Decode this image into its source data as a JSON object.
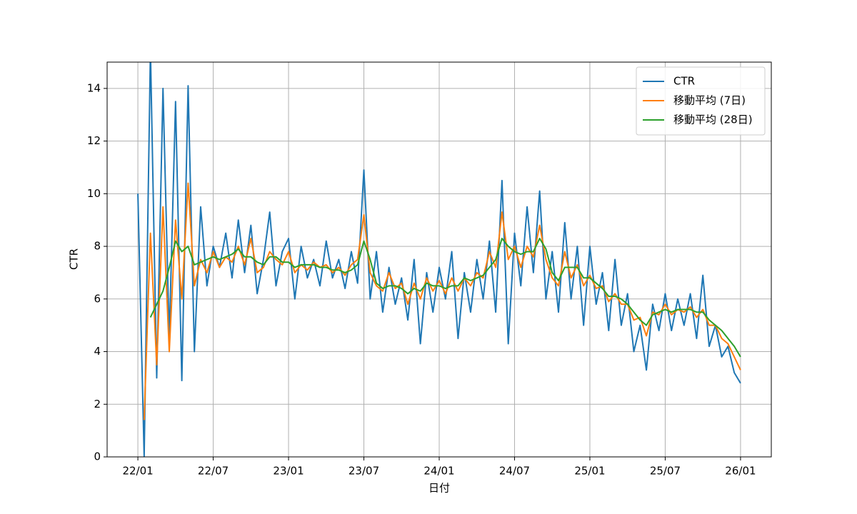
{
  "chart_data": {
    "type": "line",
    "xlabel": "日付",
    "ylabel": "CTR",
    "x": [
      0,
      0.5,
      1,
      1.5,
      2,
      2.5,
      3,
      3.5,
      4,
      4.5,
      5,
      5.5,
      6,
      6.5,
      7,
      7.5,
      8,
      8.5,
      9,
      9.5,
      10,
      10.5,
      11,
      11.5,
      12,
      12.5,
      13,
      13.5,
      14,
      14.5,
      15,
      15.5,
      16,
      16.5,
      17,
      17.5,
      18,
      18.5,
      19,
      19.5,
      20,
      20.5,
      21,
      21.5,
      22,
      22.5,
      23,
      23.5,
      24,
      24.5,
      25,
      25.5,
      26,
      26.5,
      27,
      27.5,
      28,
      28.5,
      29,
      29.5,
      30,
      30.5,
      31,
      31.5,
      32,
      32.5,
      33,
      33.5,
      34,
      34.5,
      35,
      35.5,
      36,
      36.5,
      37,
      37.5,
      38,
      38.5,
      39,
      39.5,
      40,
      40.5,
      41,
      41.5,
      42,
      42.5,
      43,
      43.5,
      44,
      44.5,
      45,
      45.5,
      46,
      46.5,
      47,
      47.5,
      48
    ],
    "series": [
      {
        "name": "CTR",
        "color": "#1f77b4",
        "values": [
          10.0,
          0.0,
          15.5,
          3.0,
          14.0,
          4.5,
          13.5,
          2.9,
          14.1,
          4.0,
          9.5,
          6.5,
          8.0,
          7.2,
          8.5,
          6.8,
          9.0,
          7.0,
          8.8,
          6.2,
          7.5,
          9.3,
          6.5,
          7.8,
          8.3,
          6.0,
          8.0,
          6.8,
          7.5,
          6.5,
          8.2,
          6.8,
          7.5,
          6.4,
          7.8,
          6.6,
          10.9,
          6.0,
          7.8,
          5.5,
          7.2,
          5.8,
          6.8,
          5.2,
          7.5,
          4.3,
          7.0,
          5.5,
          7.2,
          6.0,
          7.8,
          4.5,
          7.0,
          5.5,
          7.5,
          6.0,
          8.2,
          5.5,
          10.5,
          4.3,
          8.5,
          6.5,
          9.5,
          7.0,
          10.1,
          6.0,
          7.8,
          5.5,
          8.9,
          6.0,
          8.0,
          5.0,
          8.0,
          5.8,
          7.0,
          4.8,
          7.5,
          5.0,
          6.2,
          4.0,
          5.0,
          3.3,
          5.8,
          4.8,
          6.2,
          4.8,
          6.0,
          5.0,
          6.2,
          4.5,
          6.9,
          4.2,
          5.0,
          3.8,
          4.2,
          3.2,
          2.8
        ]
      },
      {
        "name": "移動平均 (7日)",
        "color": "#ff7f0e",
        "values": [
          null,
          1.4,
          8.5,
          3.5,
          9.5,
          4.0,
          9.0,
          6.0,
          10.4,
          6.5,
          7.5,
          7.0,
          7.8,
          7.2,
          7.6,
          7.4,
          8.0,
          7.3,
          8.3,
          7.0,
          7.2,
          7.8,
          7.5,
          7.3,
          7.8,
          7.0,
          7.3,
          7.1,
          7.4,
          7.2,
          7.3,
          7.0,
          7.2,
          6.9,
          7.3,
          7.5,
          9.2,
          7.0,
          6.5,
          6.3,
          7.0,
          6.4,
          6.6,
          5.8,
          6.6,
          6.0,
          6.8,
          6.3,
          6.7,
          6.2,
          6.8,
          6.3,
          6.8,
          6.5,
          7.0,
          6.8,
          7.8,
          7.2,
          9.3,
          7.5,
          8.0,
          7.2,
          8.0,
          7.6,
          8.8,
          7.5,
          6.8,
          6.5,
          7.8,
          6.8,
          7.3,
          6.5,
          6.9,
          6.4,
          6.5,
          5.9,
          6.2,
          5.8,
          5.8,
          5.2,
          5.3,
          4.6,
          5.5,
          5.4,
          5.8,
          5.4,
          5.6,
          5.5,
          5.7,
          5.3,
          5.6,
          5.0,
          5.0,
          4.5,
          4.3,
          3.8,
          3.3
        ]
      },
      {
        "name": "移動平均 (28日)",
        "color": "#2ca02c",
        "values": [
          null,
          null,
          5.3,
          5.8,
          6.3,
          7.2,
          8.2,
          7.8,
          8.0,
          7.3,
          7.4,
          7.5,
          7.6,
          7.5,
          7.6,
          7.7,
          7.9,
          7.6,
          7.6,
          7.4,
          7.3,
          7.6,
          7.6,
          7.4,
          7.4,
          7.2,
          7.3,
          7.3,
          7.3,
          7.2,
          7.2,
          7.1,
          7.1,
          7.0,
          7.1,
          7.3,
          8.2,
          7.5,
          6.6,
          6.4,
          6.5,
          6.5,
          6.4,
          6.2,
          6.4,
          6.3,
          6.6,
          6.5,
          6.5,
          6.4,
          6.5,
          6.5,
          6.8,
          6.7,
          6.8,
          6.9,
          7.2,
          7.5,
          8.3,
          8.0,
          7.8,
          7.7,
          7.8,
          7.8,
          8.3,
          7.9,
          7.0,
          6.7,
          7.2,
          7.2,
          7.2,
          6.8,
          6.8,
          6.6,
          6.4,
          6.1,
          6.1,
          6.0,
          5.8,
          5.5,
          5.2,
          5.0,
          5.4,
          5.5,
          5.6,
          5.5,
          5.6,
          5.6,
          5.6,
          5.5,
          5.5,
          5.2,
          5.0,
          4.8,
          4.5,
          4.2,
          3.8
        ]
      }
    ],
    "xlim": [
      -2.45,
      50.45
    ],
    "xticks": [
      {
        "value": 0,
        "label": "22/01"
      },
      {
        "value": 6,
        "label": "22/07"
      },
      {
        "value": 12,
        "label": "23/01"
      },
      {
        "value": 18,
        "label": "23/07"
      },
      {
        "value": 24,
        "label": "24/01"
      },
      {
        "value": 30,
        "label": "24/07"
      },
      {
        "value": 36,
        "label": "25/01"
      },
      {
        "value": 42,
        "label": "25/07"
      },
      {
        "value": 48,
        "label": "26/01"
      }
    ],
    "ylim": [
      0,
      15
    ],
    "yticks": [
      0,
      2,
      4,
      6,
      8,
      10,
      12,
      14
    ],
    "grid": true,
    "legend": "upper right"
  }
}
